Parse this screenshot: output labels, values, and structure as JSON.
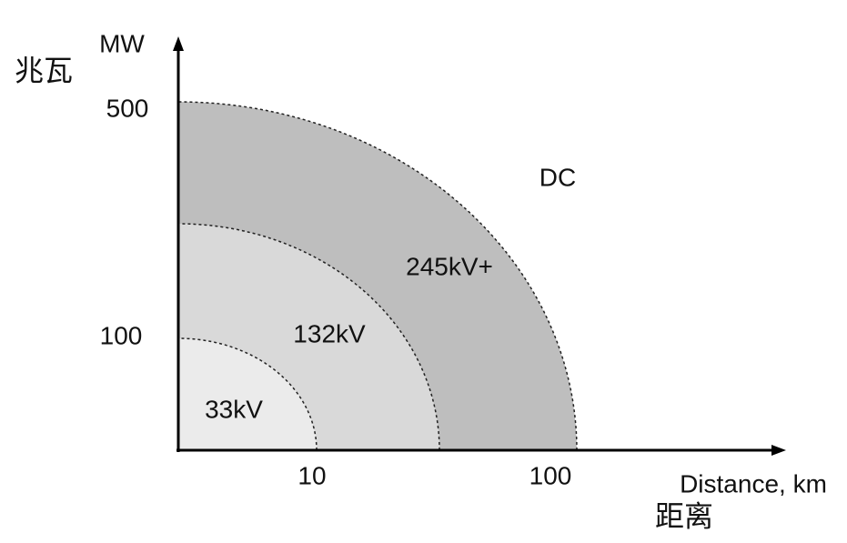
{
  "axes": {
    "y_unit": "MW",
    "y_label_cn": "兆瓦",
    "y_ticks": [
      "500",
      "100"
    ],
    "x_ticks": [
      "10",
      "100"
    ],
    "x_label": "Distance, km",
    "x_label_cn": "距离"
  },
  "regions": [
    {
      "label": "33kV"
    },
    {
      "label": "132kV"
    },
    {
      "label": "245kV+"
    },
    {
      "label": "DC"
    }
  ]
}
